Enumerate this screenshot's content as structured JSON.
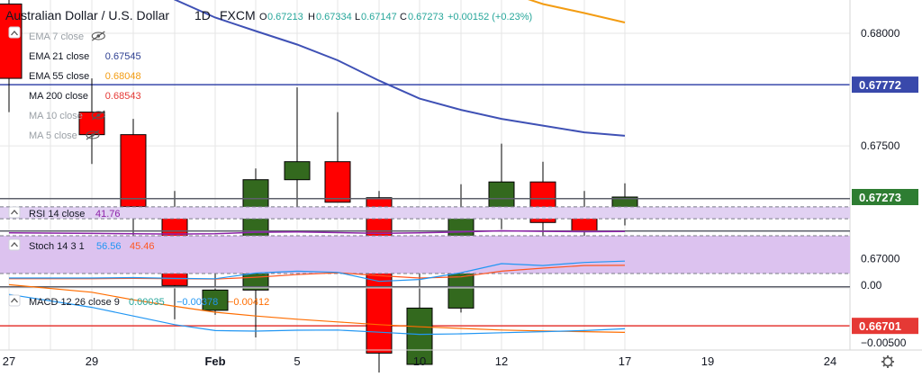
{
  "header": {
    "symbol": "Australian Dollar / U.S. Dollar",
    "interval": "1D",
    "exchange": "FXCM",
    "ohlc": {
      "open_label": "O",
      "open": "0.67213",
      "high_label": "H",
      "high": "0.67334",
      "low_label": "L",
      "low": "0.67147",
      "close_label": "C",
      "close": "0.67273",
      "change": "+0.00152 (+0.23%)"
    }
  },
  "legend": [
    {
      "label": "EMA 7 close",
      "value": "",
      "hidden": true,
      "color": "#9aa0a6"
    },
    {
      "label": "EMA 21 close",
      "value": "0.67545",
      "hidden": false,
      "color": "#2c3e91"
    },
    {
      "label": "EMA 55 close",
      "value": "0.68048",
      "hidden": false,
      "color": "#f39c12"
    },
    {
      "label": "MA 200 close",
      "value": "0.68543",
      "hidden": false,
      "color": "#e53935"
    },
    {
      "label": "MA 10 close",
      "value": "",
      "hidden": true,
      "color": "#9aa0a6"
    },
    {
      "label": "MA 5 close",
      "value": "",
      "hidden": true,
      "color": "#9aa0a6"
    }
  ],
  "price_axis": {
    "ticks": [
      "0.68000",
      "0.67500",
      "0.67000"
    ],
    "badges": [
      {
        "value": "0.67772",
        "color": "#3949ab",
        "kind": "horizontal-line"
      },
      {
        "value": "0.67273",
        "color": "#2e7d32",
        "kind": "last-price"
      },
      {
        "value": "0.66701",
        "color": "#e53935",
        "kind": "horizontal-line"
      }
    ]
  },
  "rsi": {
    "label": "RSI 14 close",
    "value": "41.76",
    "color": "#8e24aa"
  },
  "stoch": {
    "label": "Stoch 14 3 1",
    "k_value": "56.56",
    "d_value": "45.46",
    "k_color": "#2196f3",
    "d_color": "#ff5722"
  },
  "macd": {
    "label": "MACD 12 26 close 9",
    "values": [
      "0.00035",
      "−0.00378",
      "−0.00412"
    ],
    "colors": [
      "#26a69a",
      "#2196f3",
      "#ff6d00"
    ],
    "axis_ticks": [
      "0.00",
      "−0.00500"
    ]
  },
  "time_axis": {
    "labels": [
      "27",
      "29",
      "Feb",
      "5",
      "10",
      "12",
      "17",
      "19",
      "24"
    ]
  },
  "colors": {
    "up": "#33691e",
    "down": "#ff0000",
    "grid": "#e6e6e6",
    "rsi_band": "#e1d1f2",
    "stoch_band": "#dcc2ef"
  },
  "chart_data": {
    "type": "candlestick",
    "title": "Australian Dollar / U.S. Dollar",
    "interval": "1D",
    "ylim": [
      0.6647,
      0.683
    ],
    "candles": [
      {
        "d": "Jan 27",
        "o": 0.6813,
        "h": 0.682,
        "l": 0.6765,
        "c": 0.678
      },
      {
        "d": "Jan 29",
        "o": 0.6765,
        "h": 0.678,
        "l": 0.6742,
        "c": 0.6755
      },
      {
        "d": "Jan 30",
        "o": 0.6755,
        "h": 0.6762,
        "l": 0.67,
        "c": 0.6723
      },
      {
        "d": "Jan 31",
        "o": 0.6721,
        "h": 0.673,
        "l": 0.6673,
        "c": 0.6688
      },
      {
        "d": "Feb 3",
        "o": 0.6677,
        "h": 0.671,
        "l": 0.6675,
        "c": 0.6686
      },
      {
        "d": "Feb 4",
        "o": 0.6686,
        "h": 0.674,
        "l": 0.6665,
        "c": 0.6735
      },
      {
        "d": "Feb 5",
        "o": 0.6735,
        "h": 0.6776,
        "l": 0.6722,
        "c": 0.6743
      },
      {
        "d": "Feb 6",
        "o": 0.6743,
        "h": 0.6765,
        "l": 0.6725,
        "c": 0.6725
      },
      {
        "d": "Feb 7",
        "o": 0.6727,
        "h": 0.673,
        "l": 0.6648,
        "c": 0.6658
      },
      {
        "d": "Feb 10",
        "o": 0.6653,
        "h": 0.671,
        "l": 0.6653,
        "c": 0.6678
      },
      {
        "d": "Feb 11",
        "o": 0.6678,
        "h": 0.6733,
        "l": 0.6676,
        "c": 0.6718
      },
      {
        "d": "Feb 12",
        "o": 0.6718,
        "h": 0.6751,
        "l": 0.6713,
        "c": 0.6734
      },
      {
        "d": "Feb 13",
        "o": 0.6734,
        "h": 0.6743,
        "l": 0.6707,
        "c": 0.6716
      },
      {
        "d": "Feb 14",
        "o": 0.6719,
        "h": 0.673,
        "l": 0.6709,
        "c": 0.6712
      },
      {
        "d": "Feb 17",
        "o": 0.67213,
        "h": 0.67334,
        "l": 0.67147,
        "c": 0.67273
      }
    ],
    "overlays": [
      {
        "name": "EMA 21 close",
        "color": "#3f51b5",
        "y": [
          0.685,
          0.6838,
          0.6826,
          0.6815,
          0.6807,
          0.6801,
          0.6795,
          0.6788,
          0.6779,
          0.6771,
          0.6766,
          0.6762,
          0.6759,
          0.6756,
          0.67545
        ]
      },
      {
        "name": "EMA 55 close",
        "color": "#f39c12",
        "y": [
          0.6877,
          0.6872,
          0.6866,
          0.6861,
          0.6856,
          0.6851,
          0.6846,
          0.6841,
          0.6836,
          0.6831,
          0.6825,
          0.6819,
          0.6813,
          0.6809,
          0.68048
        ]
      }
    ],
    "hlines": [
      {
        "value": 0.67772,
        "color": "#3949ab"
      },
      {
        "value": 0.66701,
        "color": "#e53935"
      }
    ],
    "rsi": [
      37,
      35,
      34,
      33,
      34,
      39,
      40,
      38,
      35,
      37,
      40,
      44,
      42,
      41,
      41.76
    ],
    "stoch_k": [
      12,
      12,
      13,
      11,
      10,
      25,
      30,
      27,
      3,
      8,
      26,
      50,
      45,
      53,
      56.56
    ],
    "stoch_d": [
      10,
      10,
      11,
      10,
      9,
      14,
      21,
      26,
      18,
      12,
      15,
      30,
      38,
      45,
      45.46
    ],
    "macd_line": [
      -0.0006,
      -0.0018,
      -0.0026,
      -0.0034,
      -0.00395,
      -0.004,
      -0.00392,
      -0.0039,
      -0.0041,
      -0.0043,
      -0.00425,
      -0.00415,
      -0.00405,
      -0.00395,
      -0.00378
    ],
    "macd_signal": [
      0.0003,
      -0.0004,
      -0.0011,
      -0.0017,
      -0.00225,
      -0.0026,
      -0.0029,
      -0.00315,
      -0.0034,
      -0.0036,
      -0.00375,
      -0.0039,
      -0.00398,
      -0.00405,
      -0.00412
    ]
  }
}
